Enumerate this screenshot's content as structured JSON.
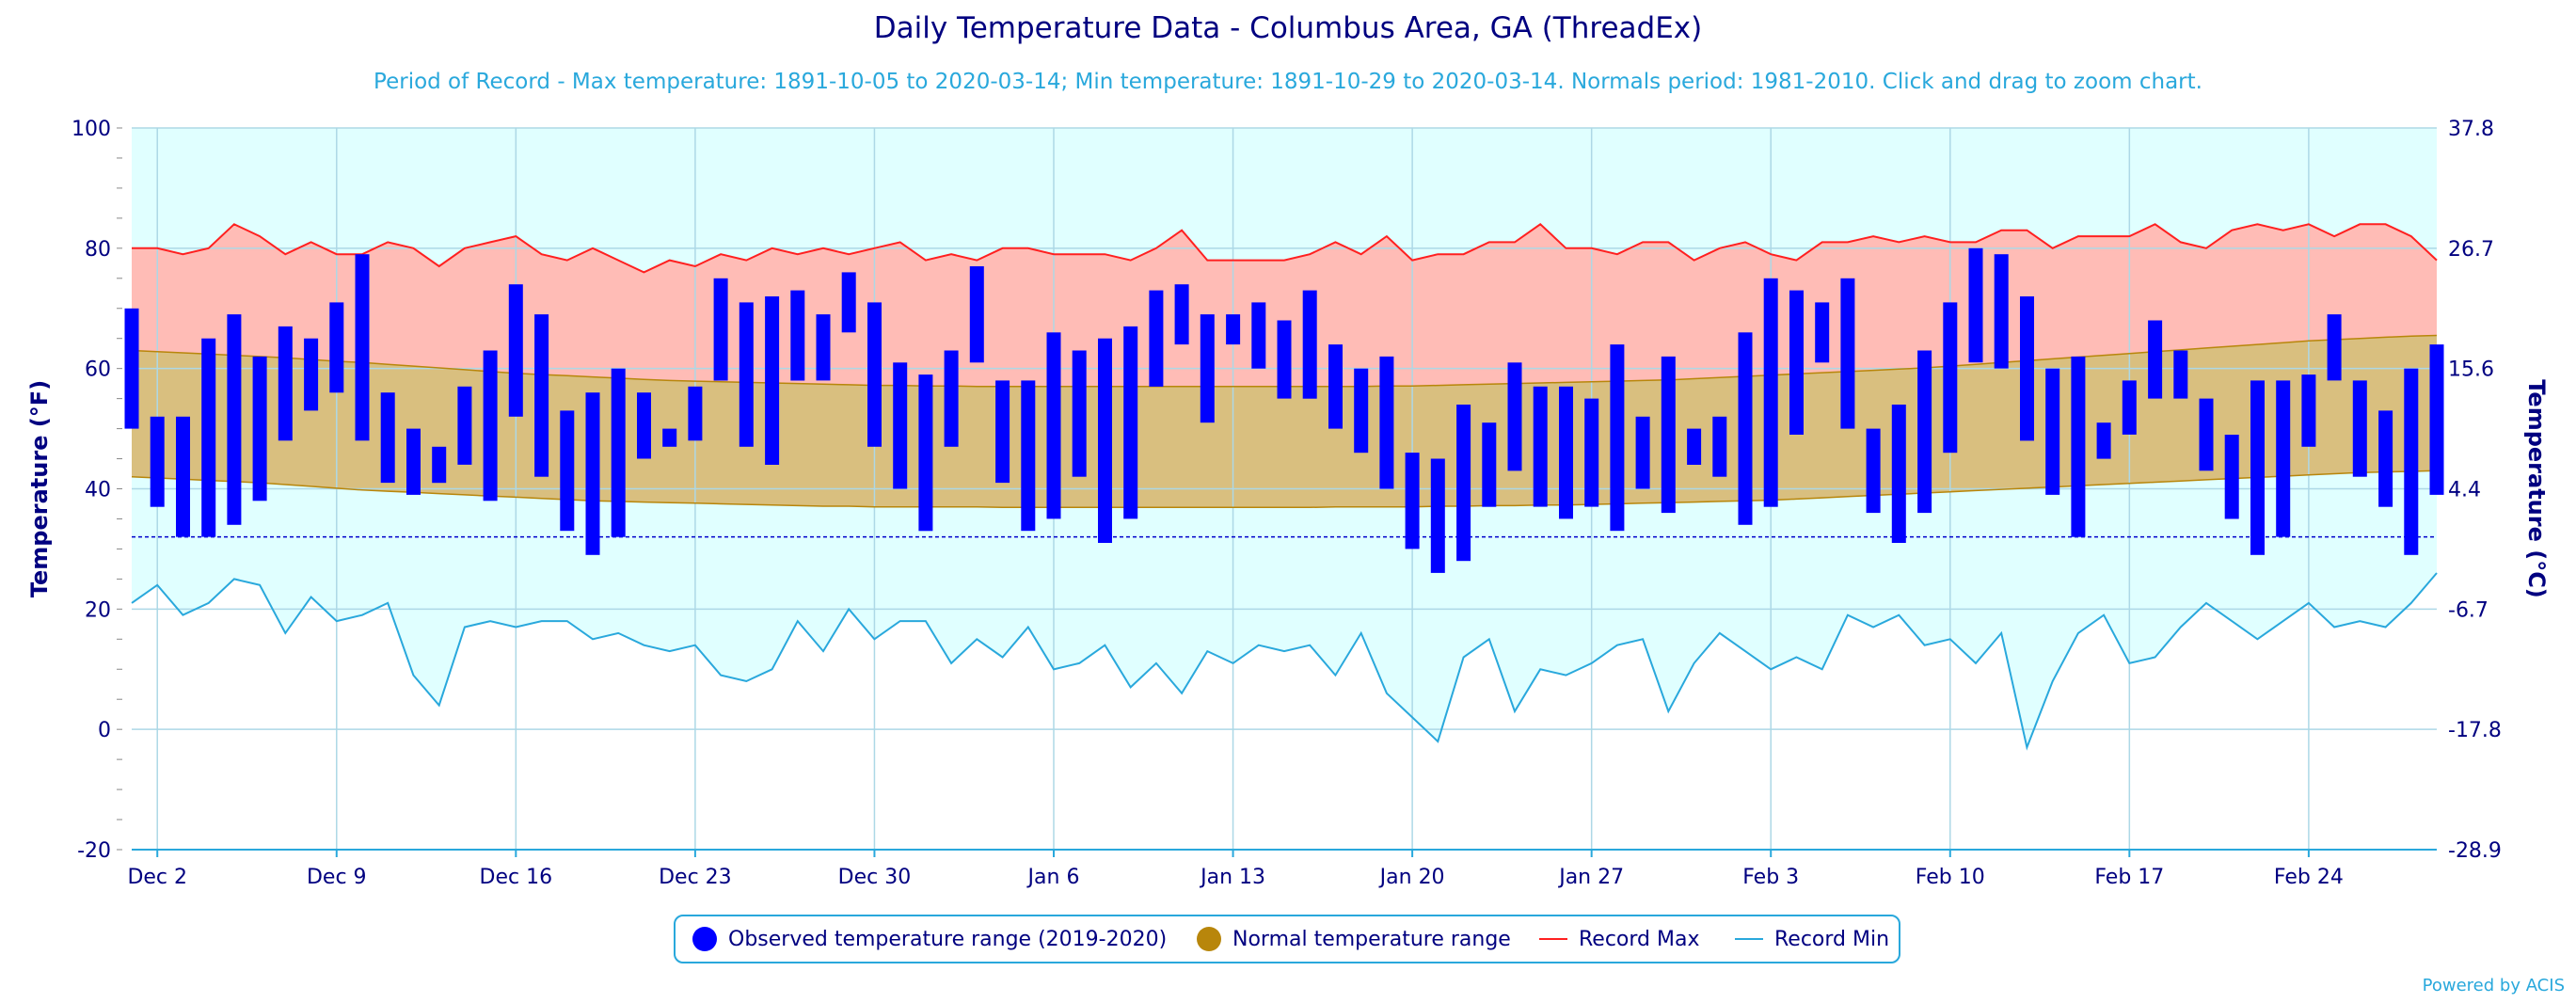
{
  "title": "Daily Temperature Data - Columbus Area, GA (ThreadEx)",
  "subtitle": "Period of Record - Max temperature: 1891-10-05 to 2020-03-14; Min temperature: 1891-10-29 to 2020-03-14. Normals period: 1981-2010. Click and drag to zoom chart.",
  "powered_by": "Powered by ACIS",
  "legend": {
    "observed": "Observed temperature range (2019-2020)",
    "normal": "Normal temperature range",
    "record_max": "Record Max",
    "record_min": "Record Min"
  },
  "colors": {
    "observed": "#0000ff",
    "normal_fill": "#d9bf7f",
    "normal_line": "#b8860b",
    "record_max_line": "#ff2020",
    "record_max_fill": "#ffbcb6",
    "record_min_line": "#29a8dc",
    "record_min_fill": "#e0ffff",
    "freezing_line": "#0000cc",
    "axis_text": "#000080"
  },
  "chart_data": {
    "type": "area",
    "title": "Daily Temperature Data - Columbus Area, GA (ThreadEx)",
    "ylabel_left": "Temperature (°F)",
    "ylabel_right": "Temperature (°C)",
    "ylim": [
      -20,
      100
    ],
    "yticks_left": [
      "100",
      "80",
      "60",
      "40",
      "20",
      "0",
      "-20"
    ],
    "yticks_right": [
      "37.8",
      "26.7",
      "15.6",
      "4.4",
      "-6.7",
      "-17.8",
      "-28.9"
    ],
    "x_start": "2019-12-01",
    "x_end": "2020-02-29",
    "xticks": [
      "Dec 2",
      "Dec 9",
      "Dec 16",
      "Dec 23",
      "Dec 30",
      "Jan 6",
      "Jan 13",
      "Jan 20",
      "Jan 27",
      "Feb 3",
      "Feb 10",
      "Feb 17",
      "Feb 24"
    ],
    "freezing_line": 32,
    "grid": true,
    "legend_position": "bottom",
    "observed_max": [
      70,
      52,
      52,
      65,
      69,
      62,
      67,
      65,
      71,
      79,
      56,
      50,
      47,
      57,
      63,
      74,
      69,
      53,
      56,
      60,
      56,
      50,
      57,
      75,
      71,
      72,
      73,
      69,
      76,
      71,
      61,
      59,
      63,
      77,
      58,
      58,
      66,
      63,
      65,
      67,
      73,
      74,
      69,
      69,
      71,
      68,
      73,
      64,
      60,
      62,
      46,
      45,
      54,
      51,
      61,
      57,
      57,
      55,
      64,
      52,
      62,
      50,
      52,
      66,
      75,
      73,
      71,
      75,
      50,
      54,
      63,
      71,
      80,
      79,
      72,
      60,
      62,
      51,
      58,
      68,
      63,
      55,
      49,
      58,
      58,
      59,
      69,
      58,
      53,
      60,
      64
    ],
    "observed_min": [
      50,
      37,
      32,
      32,
      34,
      38,
      48,
      53,
      56,
      48,
      41,
      39,
      41,
      44,
      38,
      52,
      42,
      33,
      29,
      32,
      45,
      47,
      48,
      58,
      47,
      44,
      58,
      58,
      66,
      47,
      40,
      33,
      47,
      61,
      41,
      33,
      35,
      42,
      31,
      35,
      57,
      64,
      51,
      64,
      60,
      55,
      55,
      50,
      46,
      40,
      30,
      26,
      28,
      37,
      43,
      37,
      35,
      37,
      33,
      40,
      36,
      44,
      42,
      34,
      37,
      49,
      61,
      50,
      36,
      31,
      36,
      46,
      61,
      60,
      48,
      39,
      32,
      45,
      49,
      55,
      55,
      43,
      35,
      29,
      32,
      47,
      58,
      42,
      37,
      29,
      39
    ],
    "normal_max": [
      63,
      62.8,
      62.6,
      62.4,
      62.2,
      62,
      61.8,
      61.5,
      61.2,
      61,
      60.7,
      60.4,
      60.1,
      59.8,
      59.5,
      59.2,
      59,
      58.8,
      58.6,
      58.4,
      58.2,
      58,
      57.9,
      57.8,
      57.7,
      57.6,
      57.5,
      57.4,
      57.3,
      57.2,
      57.2,
      57.1,
      57.1,
      57,
      57,
      57,
      57,
      57,
      57,
      57,
      57,
      57,
      57,
      57,
      57,
      57,
      57,
      57,
      57,
      57.1,
      57.1,
      57.2,
      57.3,
      57.4,
      57.5,
      57.6,
      57.7,
      57.8,
      57.9,
      58,
      58.1,
      58.3,
      58.5,
      58.7,
      58.9,
      59.1,
      59.3,
      59.5,
      59.7,
      59.9,
      60.1,
      60.4,
      60.7,
      61,
      61.3,
      61.6,
      61.9,
      62.2,
      62.5,
      62.8,
      63.1,
      63.4,
      63.7,
      64,
      64.3,
      64.6,
      64.8,
      65,
      65.2,
      65.4,
      65.5
    ],
    "normal_min": [
      42,
      41.8,
      41.6,
      41.4,
      41.2,
      41,
      40.7,
      40.4,
      40.1,
      39.8,
      39.6,
      39.4,
      39.2,
      39,
      38.8,
      38.6,
      38.4,
      38.2,
      38,
      37.9,
      37.8,
      37.7,
      37.6,
      37.5,
      37.4,
      37.3,
      37.2,
      37.1,
      37.1,
      37,
      37,
      37,
      37,
      37,
      36.9,
      36.9,
      36.9,
      36.9,
      36.9,
      36.9,
      36.9,
      36.9,
      36.9,
      36.9,
      36.9,
      36.9,
      36.9,
      37,
      37,
      37,
      37,
      37.1,
      37.1,
      37.2,
      37.2,
      37.3,
      37.3,
      37.4,
      37.5,
      37.6,
      37.7,
      37.8,
      37.9,
      38,
      38.1,
      38.3,
      38.5,
      38.7,
      38.9,
      39.1,
      39.3,
      39.5,
      39.7,
      39.9,
      40.1,
      40.3,
      40.5,
      40.7,
      40.9,
      41.1,
      41.3,
      41.5,
      41.7,
      41.9,
      42.1,
      42.3,
      42.5,
      42.7,
      42.8,
      42.9,
      43
    ],
    "record_max": [
      80,
      80,
      79,
      80,
      84,
      82,
      79,
      81,
      79,
      79,
      81,
      80,
      77,
      80,
      81,
      82,
      79,
      78,
      80,
      78,
      76,
      78,
      77,
      79,
      78,
      80,
      79,
      80,
      79,
      80,
      81,
      78,
      79,
      78,
      80,
      80,
      79,
      79,
      79,
      78,
      80,
      83,
      78,
      78,
      78,
      78,
      79,
      81,
      79,
      82,
      78,
      79,
      79,
      81,
      81,
      84,
      80,
      80,
      79,
      81,
      81,
      78,
      80,
      81,
      79,
      78,
      81,
      81,
      82,
      81,
      82,
      81,
      81,
      83,
      83,
      80,
      82,
      82,
      82,
      84,
      81,
      80,
      83,
      84,
      83,
      84,
      82,
      84,
      84,
      82,
      78
    ],
    "record_min": [
      21,
      24,
      19,
      21,
      25,
      24,
      16,
      22,
      18,
      19,
      21,
      9,
      4,
      17,
      18,
      17,
      18,
      18,
      15,
      16,
      14,
      13,
      14,
      9,
      8,
      10,
      18,
      13,
      20,
      15,
      18,
      18,
      11,
      15,
      12,
      17,
      10,
      11,
      14,
      7,
      11,
      6,
      13,
      11,
      14,
      13,
      14,
      9,
      16,
      6,
      2,
      -2,
      12,
      15,
      3,
      10,
      9,
      11,
      14,
      15,
      3,
      11,
      16,
      13,
      10,
      12,
      10,
      19,
      17,
      19,
      14,
      15,
      11,
      16,
      -3,
      8,
      16,
      19,
      11,
      12,
      17,
      21,
      18,
      15,
      18,
      21,
      17,
      18,
      17,
      21,
      26
    ]
  }
}
